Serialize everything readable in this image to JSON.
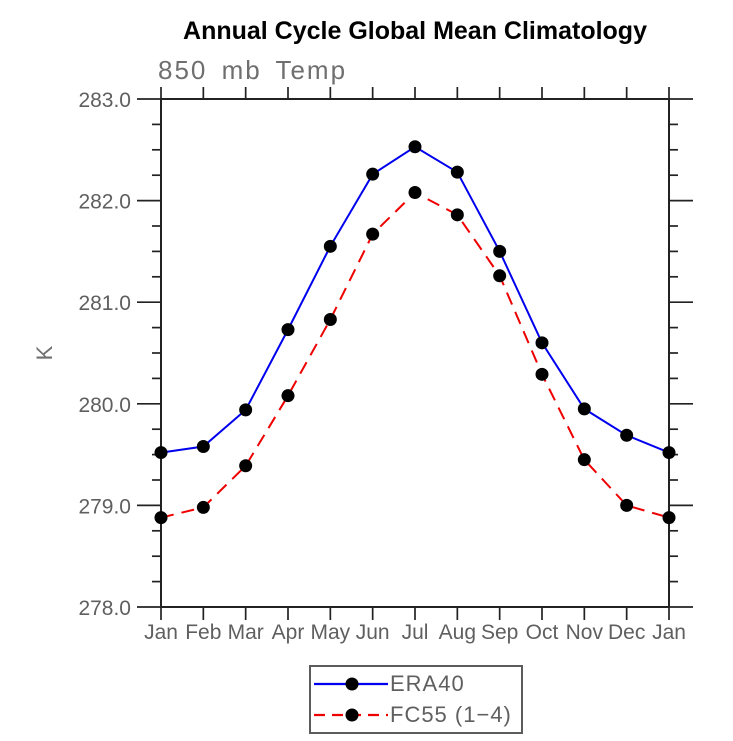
{
  "page": {
    "background": "#ffffff"
  },
  "chart_data": {
    "type": "line",
    "title": "Annual Cycle Global Mean Climatology",
    "subtitle": "850 mb Temp",
    "ylabel": "K",
    "xlabel": "",
    "categories": [
      "Jan",
      "Feb",
      "Mar",
      "Apr",
      "May",
      "Jun",
      "Jul",
      "Aug",
      "Sep",
      "Oct",
      "Nov",
      "Dec",
      "Jan"
    ],
    "series": [
      {
        "name": "ERA40",
        "color": "#0000ee",
        "line_style": "solid",
        "marker": "filled-circle",
        "marker_color": "#000000",
        "values": [
          279.52,
          279.58,
          279.94,
          280.73,
          281.55,
          282.26,
          282.53,
          282.28,
          281.5,
          280.6,
          279.95,
          279.69,
          279.52
        ]
      },
      {
        "name": "FC55 (1−4)",
        "color": "#ee0000",
        "line_style": "dashed",
        "marker": "filled-circle",
        "marker_color": "#000000",
        "values": [
          278.88,
          278.98,
          279.39,
          280.08,
          280.83,
          281.67,
          282.08,
          281.86,
          281.26,
          280.29,
          279.45,
          279.0,
          278.88
        ]
      }
    ],
    "ylim": [
      278.0,
      283.0
    ],
    "ytick_interval": 1.0,
    "yminor_interval": 0.25,
    "ytick_labels": [
      "278.0",
      "279.0",
      "280.0",
      "281.0",
      "282.0",
      "283.0"
    ],
    "grid": false,
    "tick_direction": "out",
    "legend_position": "bottom-center"
  },
  "colors": {
    "axis": "#222222",
    "tick_label": "#5f5f5f",
    "title": "#000000"
  }
}
